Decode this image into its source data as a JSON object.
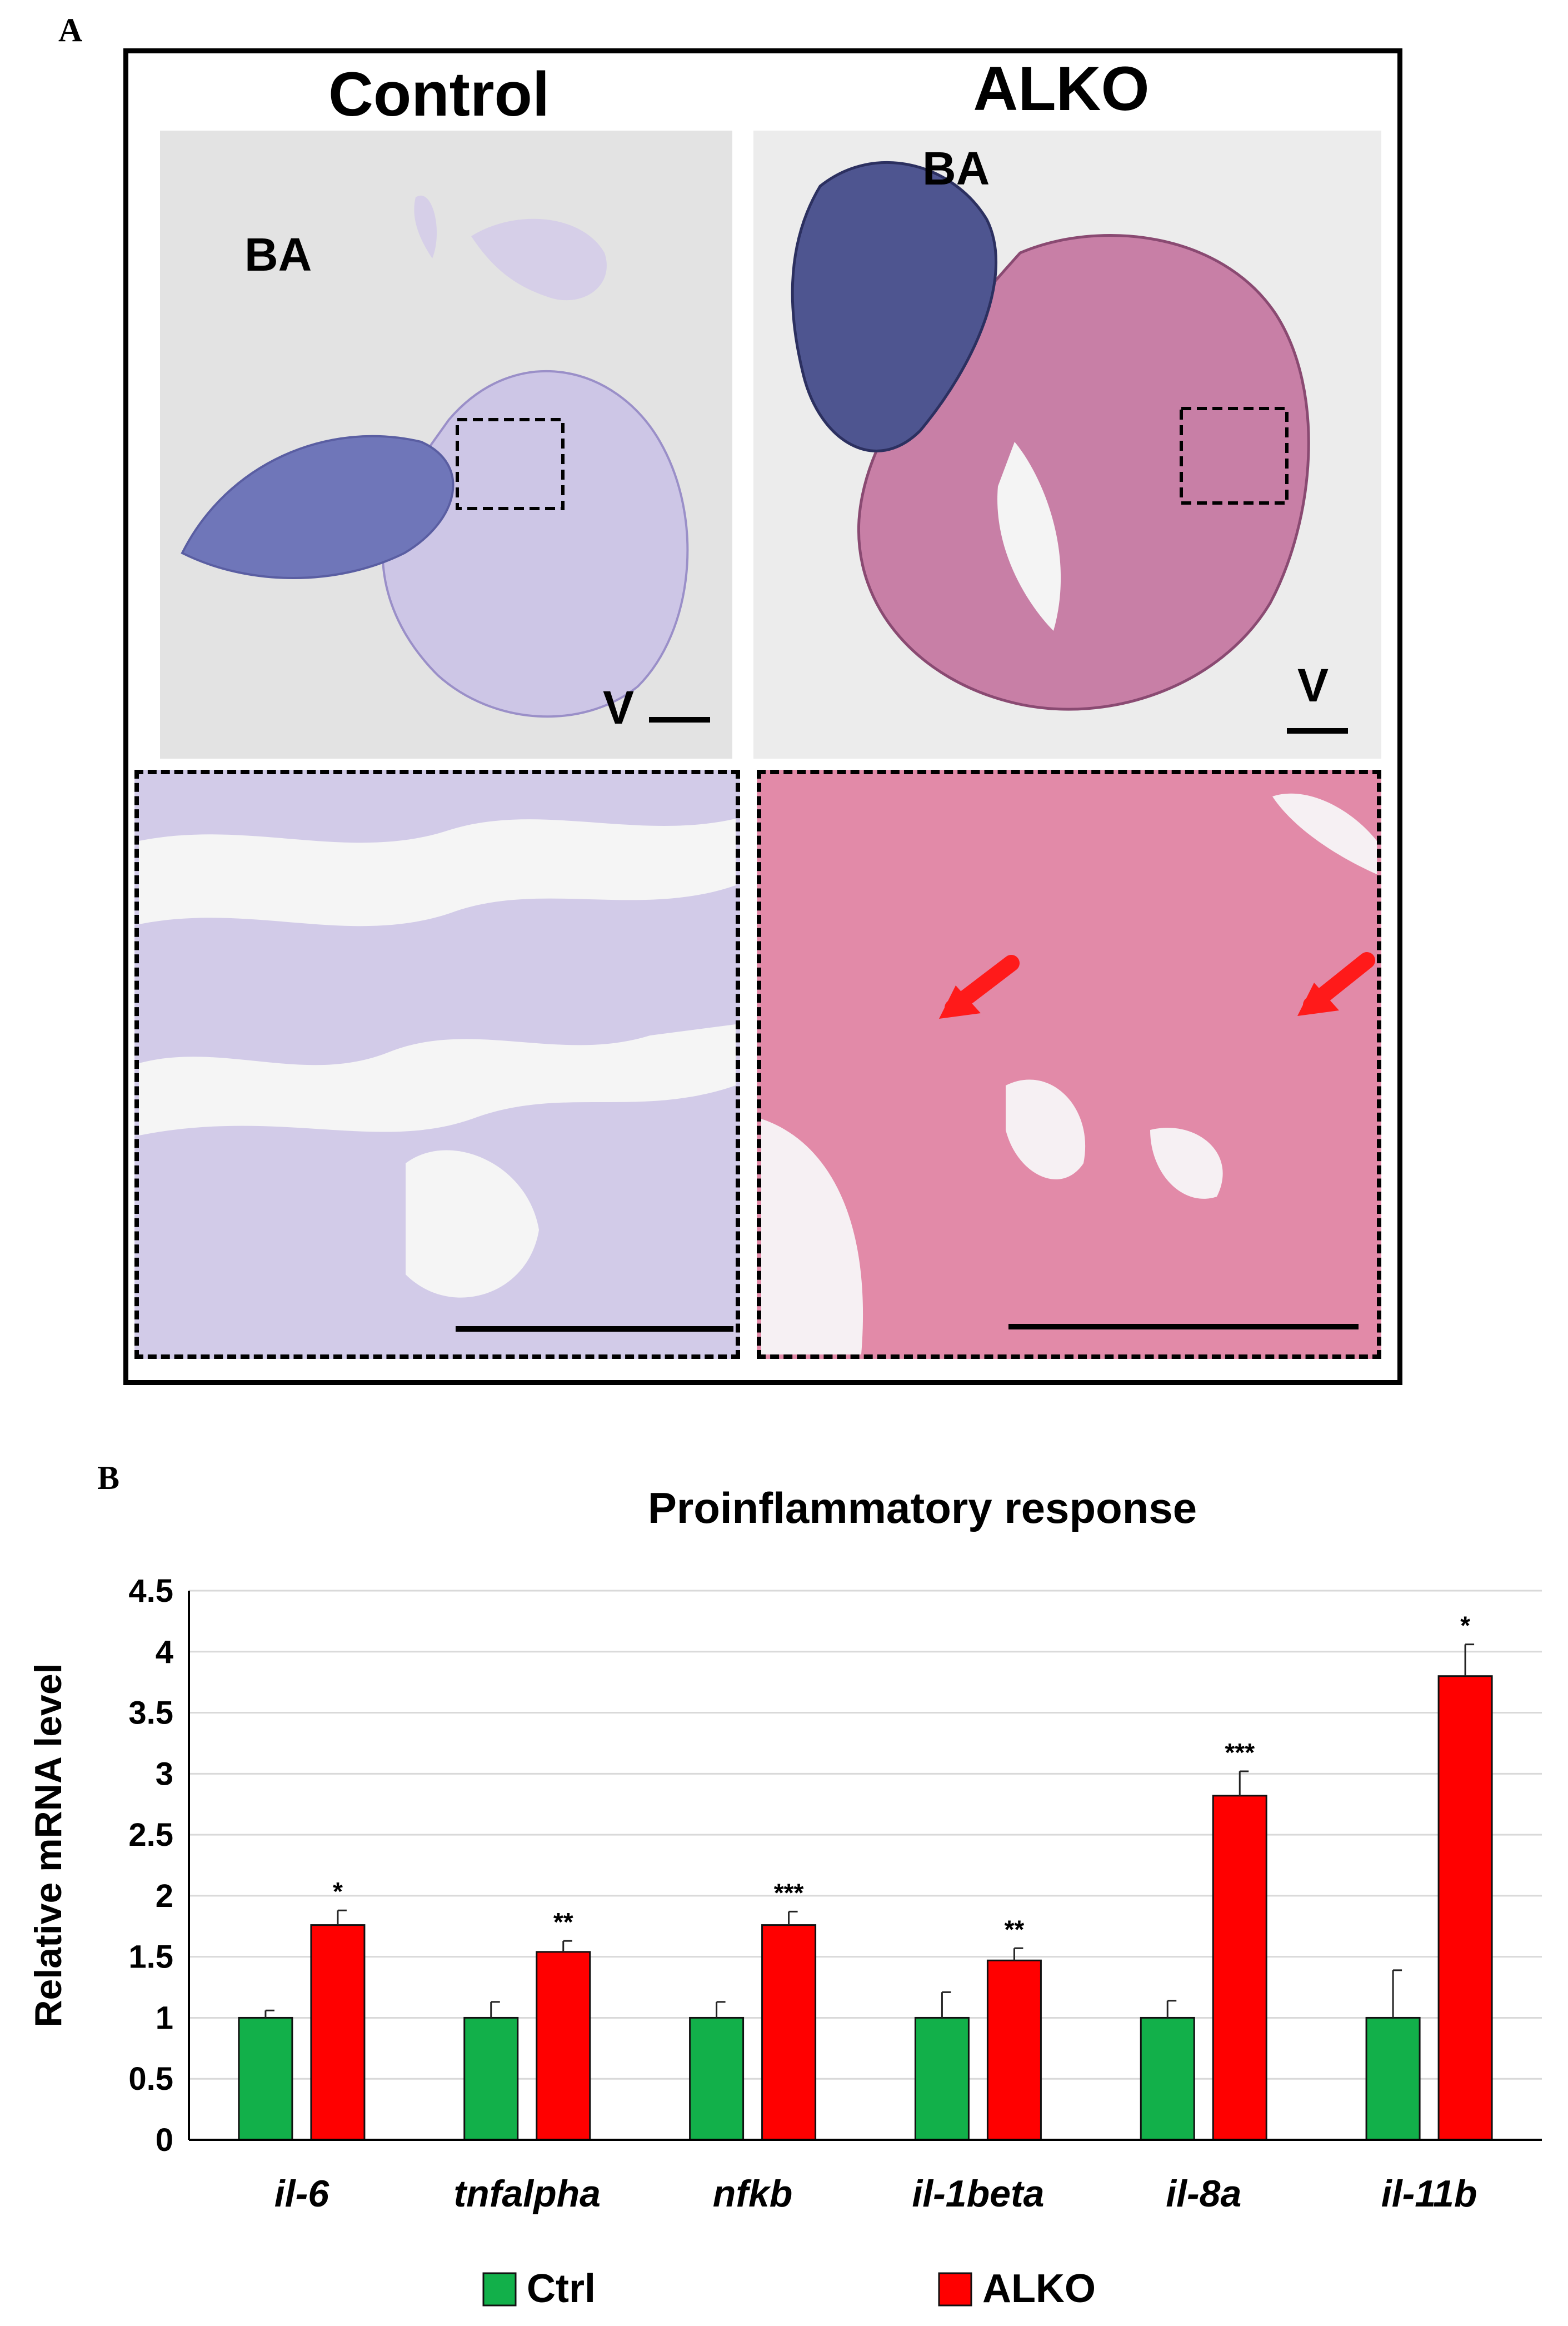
{
  "panel_a": {
    "letter": "A",
    "left_title": "Control",
    "right_title": "ALKO",
    "left_ba": "BA",
    "left_v": "V",
    "right_ba": "BA",
    "right_v": "V"
  },
  "panel_b": {
    "letter": "B"
  },
  "colors": {
    "ctrl": "#12b04a",
    "alko": "#ff0000",
    "gridline": "#d9d9d9"
  },
  "chart_data": {
    "type": "bar",
    "title": "Proinflammatory response",
    "ylabel": "Relative mRNA level",
    "xlabel": "",
    "ylim": [
      0,
      4.5
    ],
    "yticks": [
      "0",
      "0.5",
      "1",
      "1.5",
      "2",
      "2.5",
      "3",
      "3.5",
      "4",
      "4.5"
    ],
    "grid": true,
    "legend_position": "bottom",
    "categories": [
      "il-6",
      "tnfalpha",
      "nfkb",
      "il-1beta",
      "il-8a",
      "il-11b"
    ],
    "series": [
      {
        "name": "Ctrl",
        "values": [
          1,
          1,
          1,
          1,
          1,
          1
        ],
        "errors": [
          0.06,
          0.13,
          0.13,
          0.21,
          0.14,
          0.39
        ]
      },
      {
        "name": "ALKO",
        "values": [
          1.76,
          1.54,
          1.76,
          1.47,
          2.82,
          3.8
        ],
        "errors": [
          0.12,
          0.09,
          0.11,
          0.1,
          0.2,
          0.26
        ]
      }
    ],
    "significance": [
      "*",
      "**",
      "***",
      "**",
      "***",
      "*"
    ]
  }
}
